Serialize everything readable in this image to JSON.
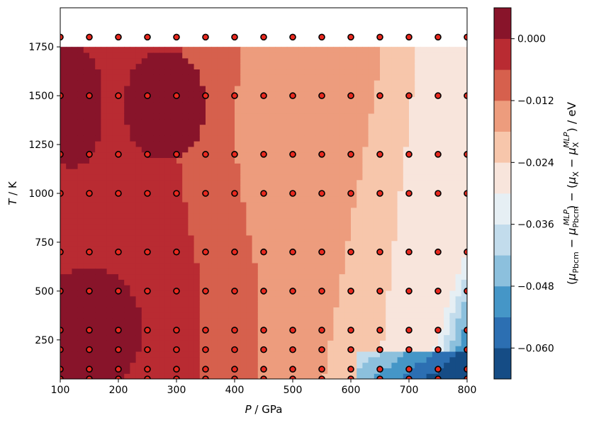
{
  "chart_data": {
    "type": "heatmap",
    "subtype": "filled-contour",
    "xlabel_symbol": "P",
    "xlabel_unit": " / GPa",
    "ylabel_symbol": "T",
    "ylabel_unit": " / K",
    "colorbar_label": "(μ_Pbcm − μ_Pbcm^MLP) − (μ_X − μ_X^MLP) / eV",
    "xlim": [
      100,
      800
    ],
    "ylim": [
      50,
      1950
    ],
    "x_ticks": [
      "100",
      "200",
      "300",
      "400",
      "500",
      "600",
      "700",
      "800"
    ],
    "y_ticks": [
      "250",
      "500",
      "750",
      "1000",
      "1250",
      "1500",
      "1750"
    ],
    "colorbar_ticks": [
      "0.000",
      "−0.012",
      "−0.024",
      "−0.036",
      "−0.048",
      "−0.060"
    ],
    "colorbar_range": [
      -0.066,
      0.006
    ],
    "colormap": "RdBu",
    "levels": [
      -0.066,
      -0.06,
      -0.054,
      -0.048,
      -0.042,
      -0.036,
      -0.03,
      -0.024,
      -0.018,
      -0.012,
      -0.006,
      0.0,
      0.006
    ],
    "level_colors": [
      "#154c85",
      "#2c6fb2",
      "#4596c7",
      "#8cc0dd",
      "#c2dcec",
      "#e6eff4",
      "#f8e5dc",
      "#f7c6ab",
      "#ed9c7d",
      "#d6604d",
      "#b92b32",
      "#88142a"
    ],
    "contour_y_range": [
      50,
      1750
    ],
    "sample_pressures": [
      100,
      150,
      200,
      250,
      300,
      350,
      400,
      450,
      500,
      550,
      600,
      650,
      700,
      750,
      800
    ],
    "sample_temperatures": [
      50,
      100,
      200,
      300,
      500,
      700,
      1000,
      1200,
      1500,
      1800
    ],
    "marker_color": "#e8281e",
    "marker_edge": "#000000"
  }
}
